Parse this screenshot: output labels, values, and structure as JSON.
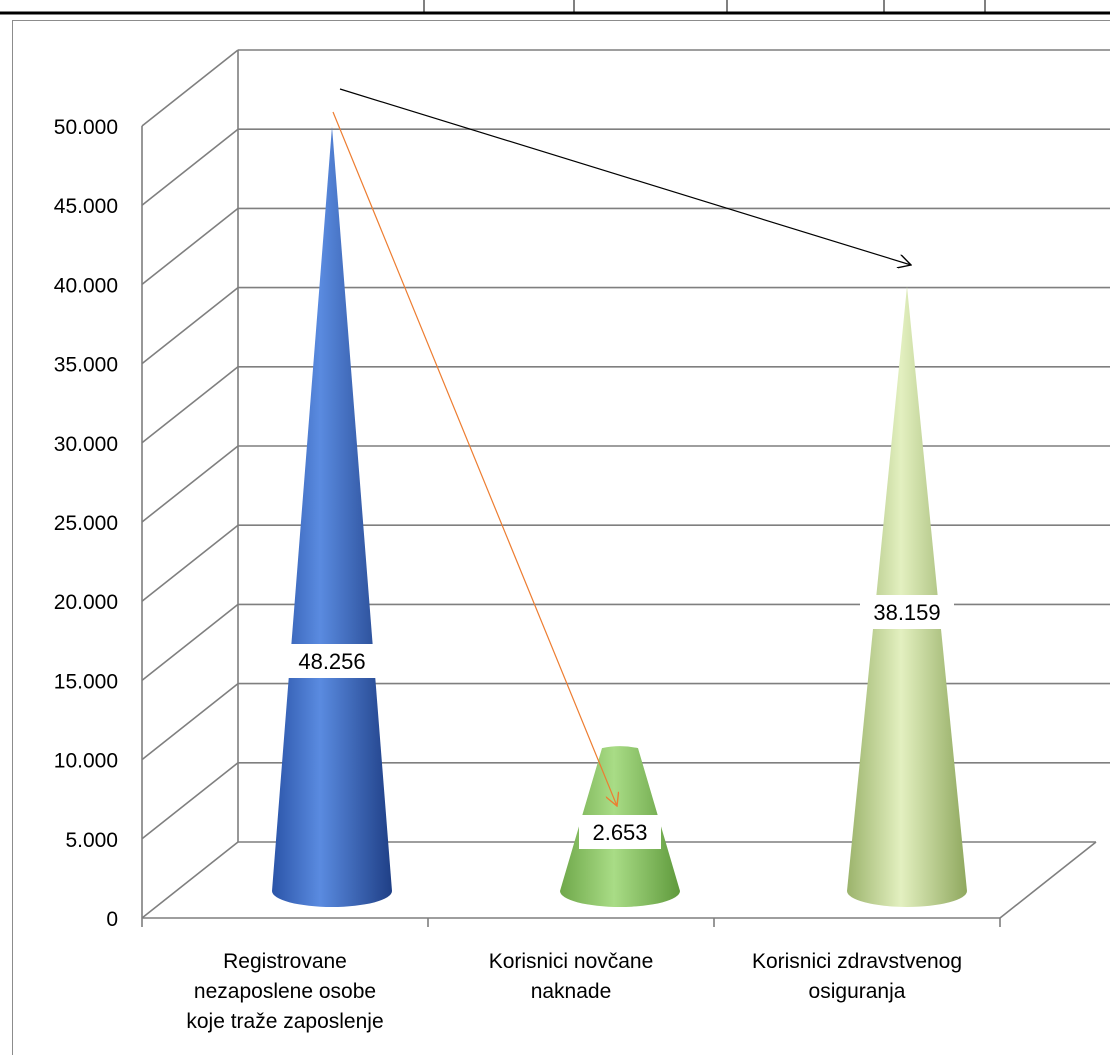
{
  "chart_data": {
    "type": "bar",
    "variant": "3d-cone",
    "categories": [
      [
        "Registrovane",
        "nezaposlene osobe",
        "koje traže zaposlenje"
      ],
      [
        "Korisnici novčane",
        "naknade"
      ],
      [
        "Korisnici zdravstvenog",
        "osiguranja"
      ]
    ],
    "values": [
      48256,
      2653,
      38159
    ],
    "data_labels": [
      "48.256",
      "2.653",
      "38.159"
    ],
    "ylim": [
      0,
      50000
    ],
    "yticks": [
      0,
      5000,
      10000,
      15000,
      20000,
      25000,
      30000,
      35000,
      40000,
      45000,
      50000
    ],
    "ytick_labels": [
      "0",
      "5.000",
      "10.000",
      "15.000",
      "20.000",
      "25.000",
      "30.000",
      "35.000",
      "40.000",
      "45.000",
      "50.000"
    ],
    "grid": true,
    "legend": "none",
    "colors": {
      "series": [
        "#4472c4",
        "#92d050",
        "#c3d69b"
      ],
      "gridline": "#7f7f7f",
      "arrow_black": "#000000",
      "arrow_orange": "#ed7d31"
    }
  }
}
